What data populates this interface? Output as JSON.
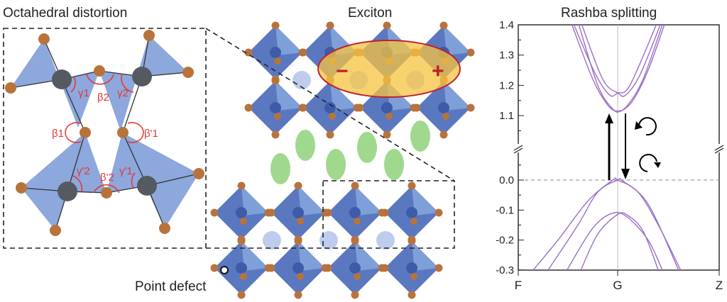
{
  "panels": {
    "distortion": {
      "title": "Octahedral distortion",
      "angles": [
        "γ1",
        "β2",
        "γ2",
        "β1",
        "β'1",
        "γ'2",
        "β'2",
        "γ'1"
      ]
    },
    "exciton": {
      "title": "Exciton",
      "minus": "−",
      "plus": "+"
    },
    "defect": {
      "label": "Point defect"
    },
    "rashba": {
      "title": "Rashba splitting"
    }
  },
  "colors": {
    "octahedron": "#7f9fd9",
    "octahedron_dark": "#5a78c0",
    "oxygen_atom": "#b8733c",
    "metal_atom": "#555a60",
    "angle_marks": "#e53935",
    "exciton_fill": "#f7c340",
    "exciton_edge": "#c0202a",
    "cation": "#aebfe8",
    "organic": "#8fd27a",
    "bands": "#9b6fc7"
  },
  "chart_data": {
    "type": "line",
    "title": "Rashba splitting",
    "xlabel": "",
    "ylabel": "",
    "x_ticks": [
      "F",
      "G",
      "Z"
    ],
    "y_ticks_upper": [
      "1.1",
      "1.2",
      "1.3",
      "1.4"
    ],
    "y_ticks_lower": [
      "-0.3",
      "-0.2",
      "-0.1",
      "0.0"
    ],
    "ylim_upper": [
      1.0,
      1.4
    ],
    "ylim_lower": [
      -0.3,
      0.1
    ],
    "axis_break": true,
    "reference_line": {
      "y": 0.0,
      "style": "dashed"
    },
    "annotations": [
      "up-arrow (absorption)",
      "down-arrow (emission)",
      "counter-clockwise circular arrow",
      "clockwise circular arrow"
    ],
    "x_domain": [
      -1,
      1
    ],
    "series": [
      {
        "points": [
          [
            -0.46,
            1.4
          ],
          [
            -0.25,
            1.22
          ],
          [
            -0.1,
            1.135
          ],
          [
            0,
            1.115
          ],
          [
            0.1,
            1.135
          ],
          [
            0.25,
            1.22
          ],
          [
            0.44,
            1.4
          ]
        ]
      },
      {
        "points": [
          [
            -0.39,
            1.4
          ],
          [
            -0.2,
            1.2
          ],
          [
            -0.05,
            1.122
          ],
          [
            0.03,
            1.115
          ],
          [
            0.15,
            1.15
          ],
          [
            0.3,
            1.25
          ],
          [
            0.46,
            1.4
          ]
        ]
      },
      {
        "points": [
          [
            -0.44,
            1.4
          ],
          [
            -0.22,
            1.235
          ],
          [
            -0.08,
            1.168
          ],
          [
            0,
            1.175
          ],
          [
            0.12,
            1.2
          ],
          [
            0.38,
            1.4
          ]
        ]
      },
      {
        "points": [
          [
            -0.36,
            1.4
          ],
          [
            -0.15,
            1.22
          ],
          [
            0,
            1.175
          ],
          [
            0.08,
            1.168
          ],
          [
            0.22,
            1.235
          ],
          [
            0.42,
            1.4
          ]
        ]
      },
      {
        "points": [
          [
            -0.85,
            -0.3
          ],
          [
            -0.6,
            -0.2
          ],
          [
            -0.3,
            -0.07
          ],
          [
            -0.05,
            0
          ],
          [
            0,
            0
          ],
          [
            0.2,
            -0.04
          ],
          [
            0.4,
            -0.15
          ],
          [
            0.62,
            -0.3
          ]
        ]
      },
      {
        "points": [
          [
            -0.7,
            -0.3
          ],
          [
            -0.4,
            -0.15
          ],
          [
            -0.2,
            -0.04
          ],
          [
            0,
            0
          ],
          [
            0.05,
            -0.003
          ],
          [
            0.3,
            -0.08
          ],
          [
            0.6,
            -0.3
          ]
        ]
      },
      {
        "points": [
          [
            -0.51,
            -0.3
          ],
          [
            -0.25,
            -0.16
          ],
          [
            -0.05,
            -0.11
          ],
          [
            0.1,
            -0.125
          ],
          [
            0.3,
            -0.2
          ],
          [
            0.44,
            -0.3
          ]
        ]
      },
      {
        "points": [
          [
            -0.37,
            -0.3
          ],
          [
            -0.2,
            -0.18
          ],
          [
            0,
            -0.115
          ],
          [
            0.1,
            -0.118
          ],
          [
            0.25,
            -0.17
          ],
          [
            0.4,
            -0.3
          ]
        ]
      }
    ]
  }
}
